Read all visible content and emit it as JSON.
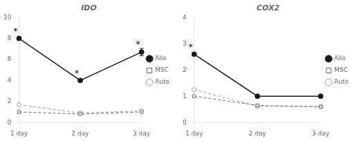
{
  "chart_data": [
    {
      "type": "line",
      "title": "IDO",
      "categories": [
        "1 day",
        "2 day",
        "3 day"
      ],
      "series": [
        {
          "name": "MSC",
          "color": "#666666",
          "values": [
            1.0,
            0.8,
            1.0
          ],
          "marker": "square-open",
          "line_style": "dashed"
        },
        {
          "name": "Allo",
          "color": "#1a1a1a",
          "values": [
            8.0,
            4.0,
            6.7
          ],
          "errors": [
            0.0,
            0.0,
            0.35
          ],
          "marker": "circle",
          "line_style": "solid"
        },
        {
          "name": "Auto",
          "color": "#999999",
          "values": [
            1.7,
            0.9,
            1.1
          ],
          "marker": "circle-open",
          "line_style": "dashed"
        }
      ],
      "annotations": [
        {
          "text": "*",
          "x": "1 day",
          "y": 8.0
        },
        {
          "text": "*",
          "x": "2 day",
          "y": 4.0
        },
        {
          "text": "*",
          "x": "3 day",
          "y": 6.7
        }
      ],
      "ylim": [
        0,
        10
      ],
      "yticks": [
        0,
        2,
        4,
        6,
        8,
        10
      ],
      "grid": false,
      "legend": "right"
    },
    {
      "type": "line",
      "title": "COX2",
      "categories": [
        "1 day",
        "2 day",
        "3 day"
      ],
      "series": [
        {
          "name": "MSC",
          "color": "#666666",
          "values": [
            1.0,
            0.65,
            0.6
          ],
          "marker": "square-open",
          "line_style": "dashed"
        },
        {
          "name": "Allo",
          "color": "#1a1a1a",
          "values": [
            2.6,
            1.0,
            1.0
          ],
          "marker": "circle",
          "line_style": "solid"
        },
        {
          "name": "Auto",
          "color": "#999999",
          "values": [
            1.25,
            0.62,
            0.6
          ],
          "marker": "circle-open",
          "line_style": "dashed"
        }
      ],
      "annotations": [
        {
          "text": "*",
          "x": "1 day",
          "y": 2.6
        }
      ],
      "ylim": [
        0,
        4
      ],
      "yticks": [
        0,
        1,
        2,
        3,
        4
      ],
      "grid": false,
      "legend": "right"
    }
  ]
}
